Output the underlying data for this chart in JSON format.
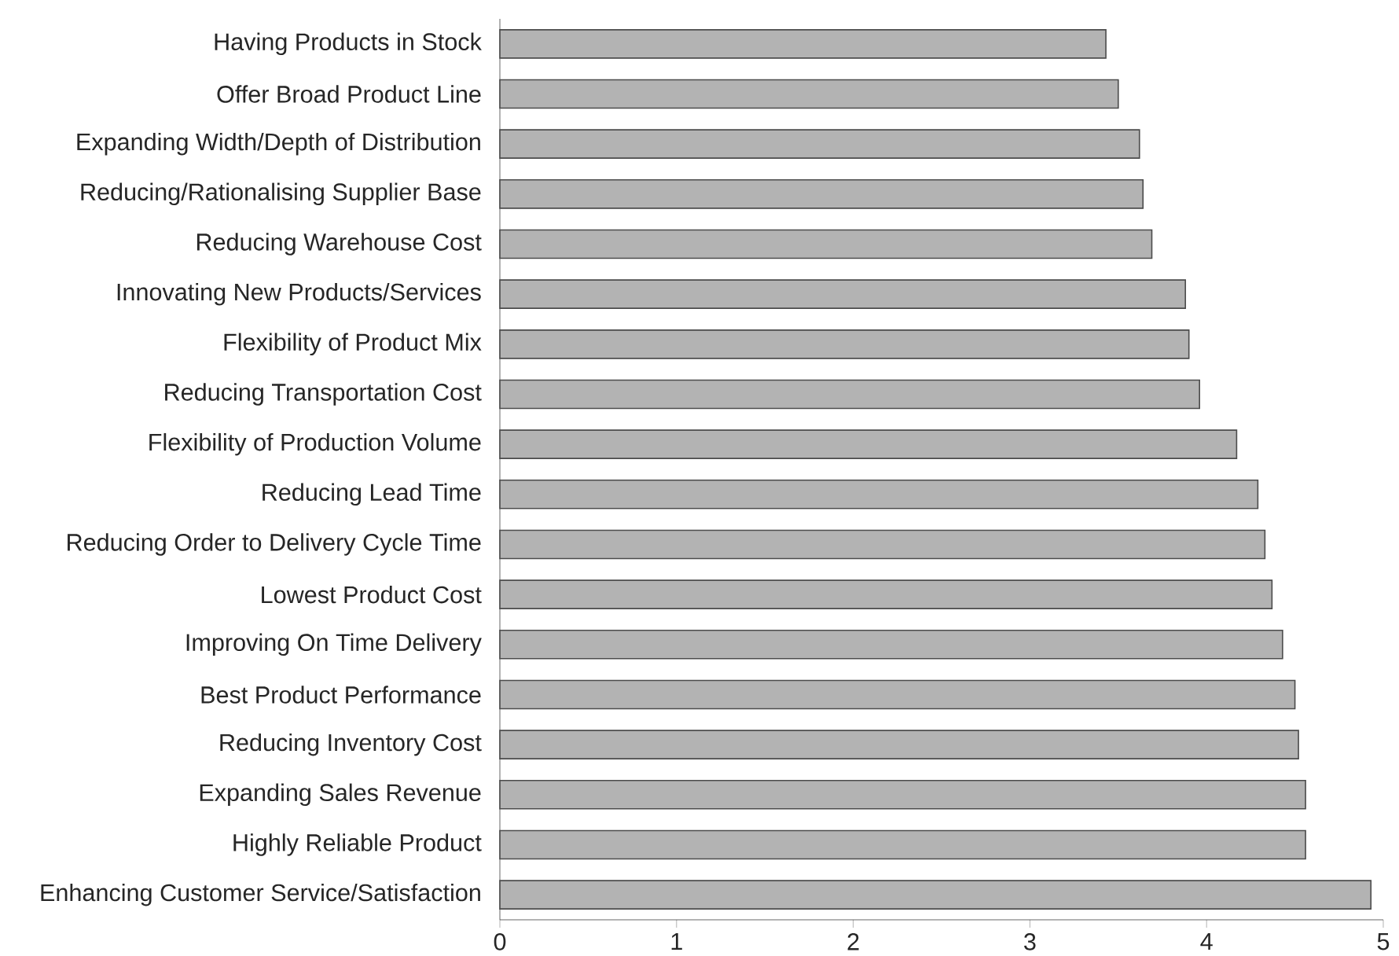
{
  "chart_data": {
    "type": "bar",
    "orientation": "horizontal",
    "categories": [
      "Having Products in Stock",
      "Offer Broad Product Line",
      "Expanding Width/Depth of Distribution",
      "Reducing/Rationalising Supplier Base",
      "Reducing Warehouse Cost",
      "Innovating New Products/Services",
      "Flexibility of Product Mix",
      "Reducing Transportation Cost",
      "Flexibility of Production Volume",
      "Reducing Lead Time",
      "Reducing Order to Delivery Cycle Time",
      "Lowest Product Cost",
      "Improving On Time Delivery",
      "Best Product Performance",
      "Reducing Inventory Cost",
      "Expanding Sales Revenue",
      "Highly Reliable Product",
      "Enhancing Customer Service/Satisfaction"
    ],
    "values": [
      3.43,
      3.5,
      3.62,
      3.64,
      3.69,
      3.88,
      3.9,
      3.96,
      4.17,
      4.29,
      4.33,
      4.37,
      4.43,
      4.5,
      4.52,
      4.56,
      4.56,
      4.93
    ],
    "color": "#b3b3b3",
    "xlim": [
      0,
      5
    ],
    "xticks": [
      0,
      1,
      2,
      3,
      4,
      5
    ]
  }
}
